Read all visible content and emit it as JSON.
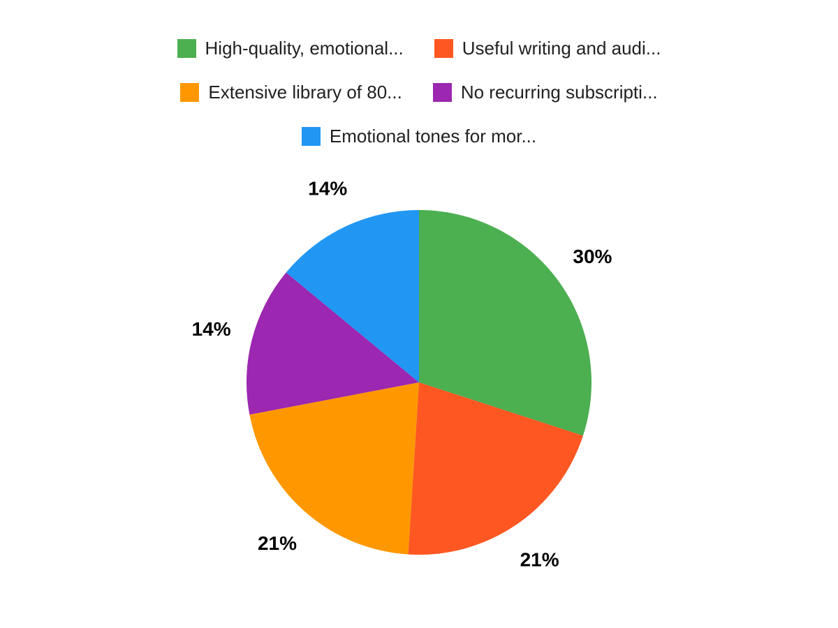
{
  "chart_data": {
    "type": "pie",
    "title": "",
    "labels": [
      "High-quality, emotional...",
      "Useful writing and audi...",
      "Extensive library of 80...",
      "No recurring subscripti...",
      "Emotional tones for mor..."
    ],
    "values": [
      30,
      21,
      21,
      14,
      14
    ],
    "value_labels": [
      "30%",
      "21%",
      "21%",
      "14%",
      "14%"
    ],
    "colors": [
      "#4caf50",
      "#ff5722",
      "#ff9800",
      "#9c27b0",
      "#2196f3"
    ],
    "legend_position": "top",
    "start_angle_deg": 0,
    "direction": "clockwise",
    "slice_label_color": "#000000",
    "legend_text_color": "#212121",
    "background": "#ffffff"
  }
}
